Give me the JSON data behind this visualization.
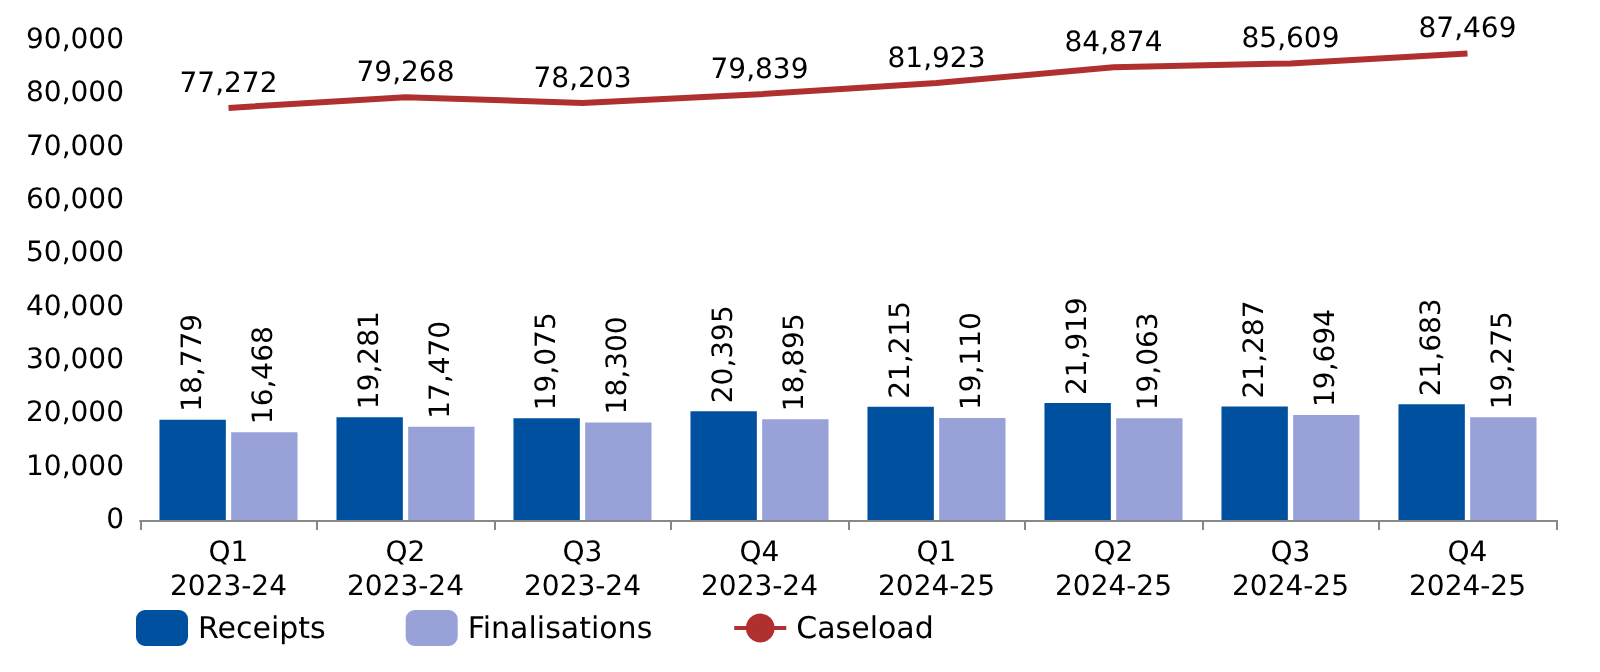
{
  "chart_data": {
    "type": "bar",
    "categories": [
      "Q1\n2023-24",
      "Q2\n2023-24",
      "Q3\n2023-24",
      "Q4\n2023-24",
      "Q1\n2024-25",
      "Q2\n2024-25",
      "Q3\n2024-25",
      "Q4\n2024-25"
    ],
    "series": [
      {
        "name": "Receipts",
        "color": "#0050a0",
        "values": [
          18779,
          19281,
          19075,
          20395,
          21215,
          21919,
          21287,
          21683
        ],
        "value_labels": [
          "18,779",
          "19,281",
          "19,075",
          "20,395",
          "21,215",
          "21,919",
          "21,287",
          "21,683"
        ]
      },
      {
        "name": "Finalisations",
        "color": "#98a2d8",
        "values": [
          16468,
          17470,
          18300,
          18895,
          19110,
          19063,
          19694,
          19275
        ],
        "value_labels": [
          "16,468",
          "17,470",
          "18,300",
          "18,895",
          "19,110",
          "19,063",
          "19,694",
          "19,275"
        ]
      },
      {
        "name": "Caseload",
        "type": "line",
        "color": "#b03030",
        "marker": "none",
        "values": [
          77272,
          79268,
          78203,
          79839,
          81923,
          84874,
          85609,
          87469
        ],
        "value_labels": [
          "77,272",
          "79,268",
          "78,203",
          "79,839",
          "81,923",
          "84,874",
          "85,609",
          "87,469"
        ]
      }
    ],
    "ylim": [
      0,
      90000
    ],
    "yticks": [
      {
        "value": 0,
        "label": "0"
      },
      {
        "value": 10000,
        "label": "10,000"
      },
      {
        "value": 20000,
        "label": "20,000"
      },
      {
        "value": 30000,
        "label": "30,000"
      },
      {
        "value": 40000,
        "label": "40,000"
      },
      {
        "value": 50000,
        "label": "50,000"
      },
      {
        "value": 60000,
        "label": "60,000"
      },
      {
        "value": 70000,
        "label": "70,000"
      },
      {
        "value": 80000,
        "label": "80,000"
      },
      {
        "value": 90000,
        "label": "90,000"
      }
    ],
    "legend": "bottom left"
  }
}
